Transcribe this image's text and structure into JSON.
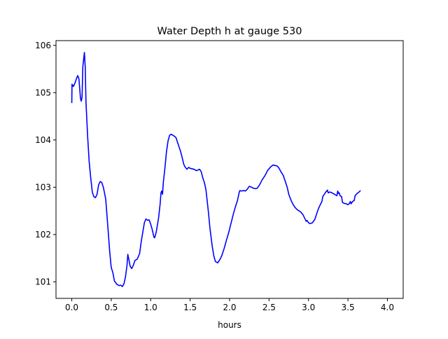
{
  "chart_data": {
    "type": "line",
    "title": "Water Depth h at gauge 530",
    "xlabel": "hours",
    "ylabel": "",
    "xlim": [
      -0.2,
      4.2
    ],
    "ylim": [
      100.65,
      106.1
    ],
    "xticks": [
      0.0,
      0.5,
      1.0,
      1.5,
      2.0,
      2.5,
      3.0,
      3.5,
      4.0
    ],
    "xtick_labels": [
      "0.0",
      "0.5",
      "1.0",
      "1.5",
      "2.0",
      "2.5",
      "3.0",
      "3.5",
      "4.0"
    ],
    "yticks": [
      101,
      102,
      103,
      104,
      105,
      106
    ],
    "ytick_labels": [
      "101",
      "102",
      "103",
      "104",
      "105",
      "106"
    ],
    "grid": false,
    "series": [
      {
        "color": "#0000ff",
        "points": [
          [
            0.0,
            104.78
          ],
          [
            0.003,
            105.18
          ],
          [
            0.02,
            105.13
          ],
          [
            0.04,
            105.2
          ],
          [
            0.06,
            105.3
          ],
          [
            0.075,
            105.36
          ],
          [
            0.09,
            105.3
          ],
          [
            0.1,
            105.1
          ],
          [
            0.11,
            104.88
          ],
          [
            0.12,
            104.82
          ],
          [
            0.13,
            104.9
          ],
          [
            0.14,
            105.55
          ],
          [
            0.16,
            105.85
          ],
          [
            0.17,
            105.55
          ],
          [
            0.18,
            104.8
          ],
          [
            0.2,
            104.1
          ],
          [
            0.22,
            103.55
          ],
          [
            0.24,
            103.2
          ],
          [
            0.26,
            102.9
          ],
          [
            0.28,
            102.8
          ],
          [
            0.3,
            102.78
          ],
          [
            0.32,
            102.85
          ],
          [
            0.34,
            103.05
          ],
          [
            0.36,
            103.12
          ],
          [
            0.38,
            103.1
          ],
          [
            0.4,
            103.0
          ],
          [
            0.43,
            102.75
          ],
          [
            0.46,
            102.1
          ],
          [
            0.48,
            101.65
          ],
          [
            0.5,
            101.3
          ],
          [
            0.52,
            101.2
          ],
          [
            0.54,
            101.02
          ],
          [
            0.57,
            100.95
          ],
          [
            0.6,
            100.92
          ],
          [
            0.62,
            100.93
          ],
          [
            0.64,
            100.9
          ],
          [
            0.66,
            100.95
          ],
          [
            0.68,
            101.1
          ],
          [
            0.7,
            101.35
          ],
          [
            0.71,
            101.58
          ],
          [
            0.72,
            101.5
          ],
          [
            0.74,
            101.33
          ],
          [
            0.76,
            101.28
          ],
          [
            0.78,
            101.35
          ],
          [
            0.8,
            101.45
          ],
          [
            0.83,
            101.48
          ],
          [
            0.86,
            101.6
          ],
          [
            0.88,
            101.85
          ],
          [
            0.9,
            102.05
          ],
          [
            0.92,
            102.25
          ],
          [
            0.94,
            102.33
          ],
          [
            0.96,
            102.3
          ],
          [
            0.98,
            102.31
          ],
          [
            1.0,
            102.22
          ],
          [
            1.02,
            102.1
          ],
          [
            1.04,
            101.95
          ],
          [
            1.05,
            101.93
          ],
          [
            1.07,
            102.05
          ],
          [
            1.1,
            102.35
          ],
          [
            1.12,
            102.65
          ],
          [
            1.13,
            102.88
          ],
          [
            1.14,
            102.92
          ],
          [
            1.15,
            102.85
          ],
          [
            1.16,
            103.1
          ],
          [
            1.18,
            103.4
          ],
          [
            1.2,
            103.75
          ],
          [
            1.22,
            103.98
          ],
          [
            1.24,
            104.1
          ],
          [
            1.26,
            104.12
          ],
          [
            1.28,
            104.1
          ],
          [
            1.3,
            104.08
          ],
          [
            1.32,
            104.05
          ],
          [
            1.34,
            103.95
          ],
          [
            1.36,
            103.85
          ],
          [
            1.38,
            103.75
          ],
          [
            1.4,
            103.62
          ],
          [
            1.42,
            103.48
          ],
          [
            1.44,
            103.42
          ],
          [
            1.46,
            103.38
          ],
          [
            1.48,
            103.42
          ],
          [
            1.5,
            103.4
          ],
          [
            1.55,
            103.38
          ],
          [
            1.58,
            103.35
          ],
          [
            1.62,
            103.38
          ],
          [
            1.64,
            103.33
          ],
          [
            1.66,
            103.2
          ],
          [
            1.68,
            103.1
          ],
          [
            1.7,
            102.95
          ],
          [
            1.71,
            102.8
          ],
          [
            1.73,
            102.5
          ],
          [
            1.75,
            102.15
          ],
          [
            1.78,
            101.75
          ],
          [
            1.8,
            101.55
          ],
          [
            1.82,
            101.43
          ],
          [
            1.85,
            101.4
          ],
          [
            1.88,
            101.48
          ],
          [
            1.9,
            101.55
          ],
          [
            1.93,
            101.7
          ],
          [
            1.96,
            101.88
          ],
          [
            1.99,
            102.05
          ],
          [
            2.02,
            102.25
          ],
          [
            2.05,
            102.45
          ],
          [
            2.08,
            102.62
          ],
          [
            2.1,
            102.72
          ],
          [
            2.12,
            102.88
          ],
          [
            2.13,
            102.93
          ],
          [
            2.15,
            102.92
          ],
          [
            2.18,
            102.93
          ],
          [
            2.2,
            102.92
          ],
          [
            2.22,
            102.95
          ],
          [
            2.25,
            103.02
          ],
          [
            2.28,
            103.0
          ],
          [
            2.3,
            102.98
          ],
          [
            2.33,
            102.97
          ],
          [
            2.35,
            102.98
          ],
          [
            2.38,
            103.05
          ],
          [
            2.41,
            103.15
          ],
          [
            2.45,
            103.25
          ],
          [
            2.48,
            103.35
          ],
          [
            2.52,
            103.43
          ],
          [
            2.55,
            103.47
          ],
          [
            2.6,
            103.45
          ],
          [
            2.62,
            103.42
          ],
          [
            2.65,
            103.33
          ],
          [
            2.68,
            103.25
          ],
          [
            2.7,
            103.15
          ],
          [
            2.73,
            103.0
          ],
          [
            2.75,
            102.85
          ],
          [
            2.78,
            102.72
          ],
          [
            2.8,
            102.65
          ],
          [
            2.83,
            102.57
          ],
          [
            2.86,
            102.52
          ],
          [
            2.9,
            102.48
          ],
          [
            2.93,
            102.42
          ],
          [
            2.95,
            102.35
          ],
          [
            2.97,
            102.28
          ],
          [
            2.98,
            102.3
          ],
          [
            3.0,
            102.25
          ],
          [
            3.02,
            102.23
          ],
          [
            3.05,
            102.25
          ],
          [
            3.08,
            102.32
          ],
          [
            3.1,
            102.42
          ],
          [
            3.12,
            102.52
          ],
          [
            3.14,
            102.6
          ],
          [
            3.17,
            102.7
          ],
          [
            3.18,
            102.8
          ],
          [
            3.2,
            102.85
          ],
          [
            3.22,
            102.9
          ],
          [
            3.24,
            102.94
          ],
          [
            3.25,
            102.88
          ],
          [
            3.27,
            102.9
          ],
          [
            3.3,
            102.88
          ],
          [
            3.32,
            102.86
          ],
          [
            3.34,
            102.84
          ],
          [
            3.36,
            102.82
          ],
          [
            3.37,
            102.92
          ],
          [
            3.38,
            102.87
          ],
          [
            3.39,
            102.88
          ],
          [
            3.4,
            102.82
          ],
          [
            3.42,
            102.8
          ],
          [
            3.43,
            102.68
          ],
          [
            3.45,
            102.66
          ],
          [
            3.48,
            102.65
          ],
          [
            3.5,
            102.63
          ],
          [
            3.52,
            102.66
          ],
          [
            3.53,
            102.7
          ],
          [
            3.54,
            102.65
          ],
          [
            3.56,
            102.7
          ],
          [
            3.58,
            102.72
          ],
          [
            3.59,
            102.82
          ],
          [
            3.61,
            102.86
          ],
          [
            3.64,
            102.9
          ],
          [
            3.66,
            102.93
          ]
        ]
      }
    ]
  }
}
